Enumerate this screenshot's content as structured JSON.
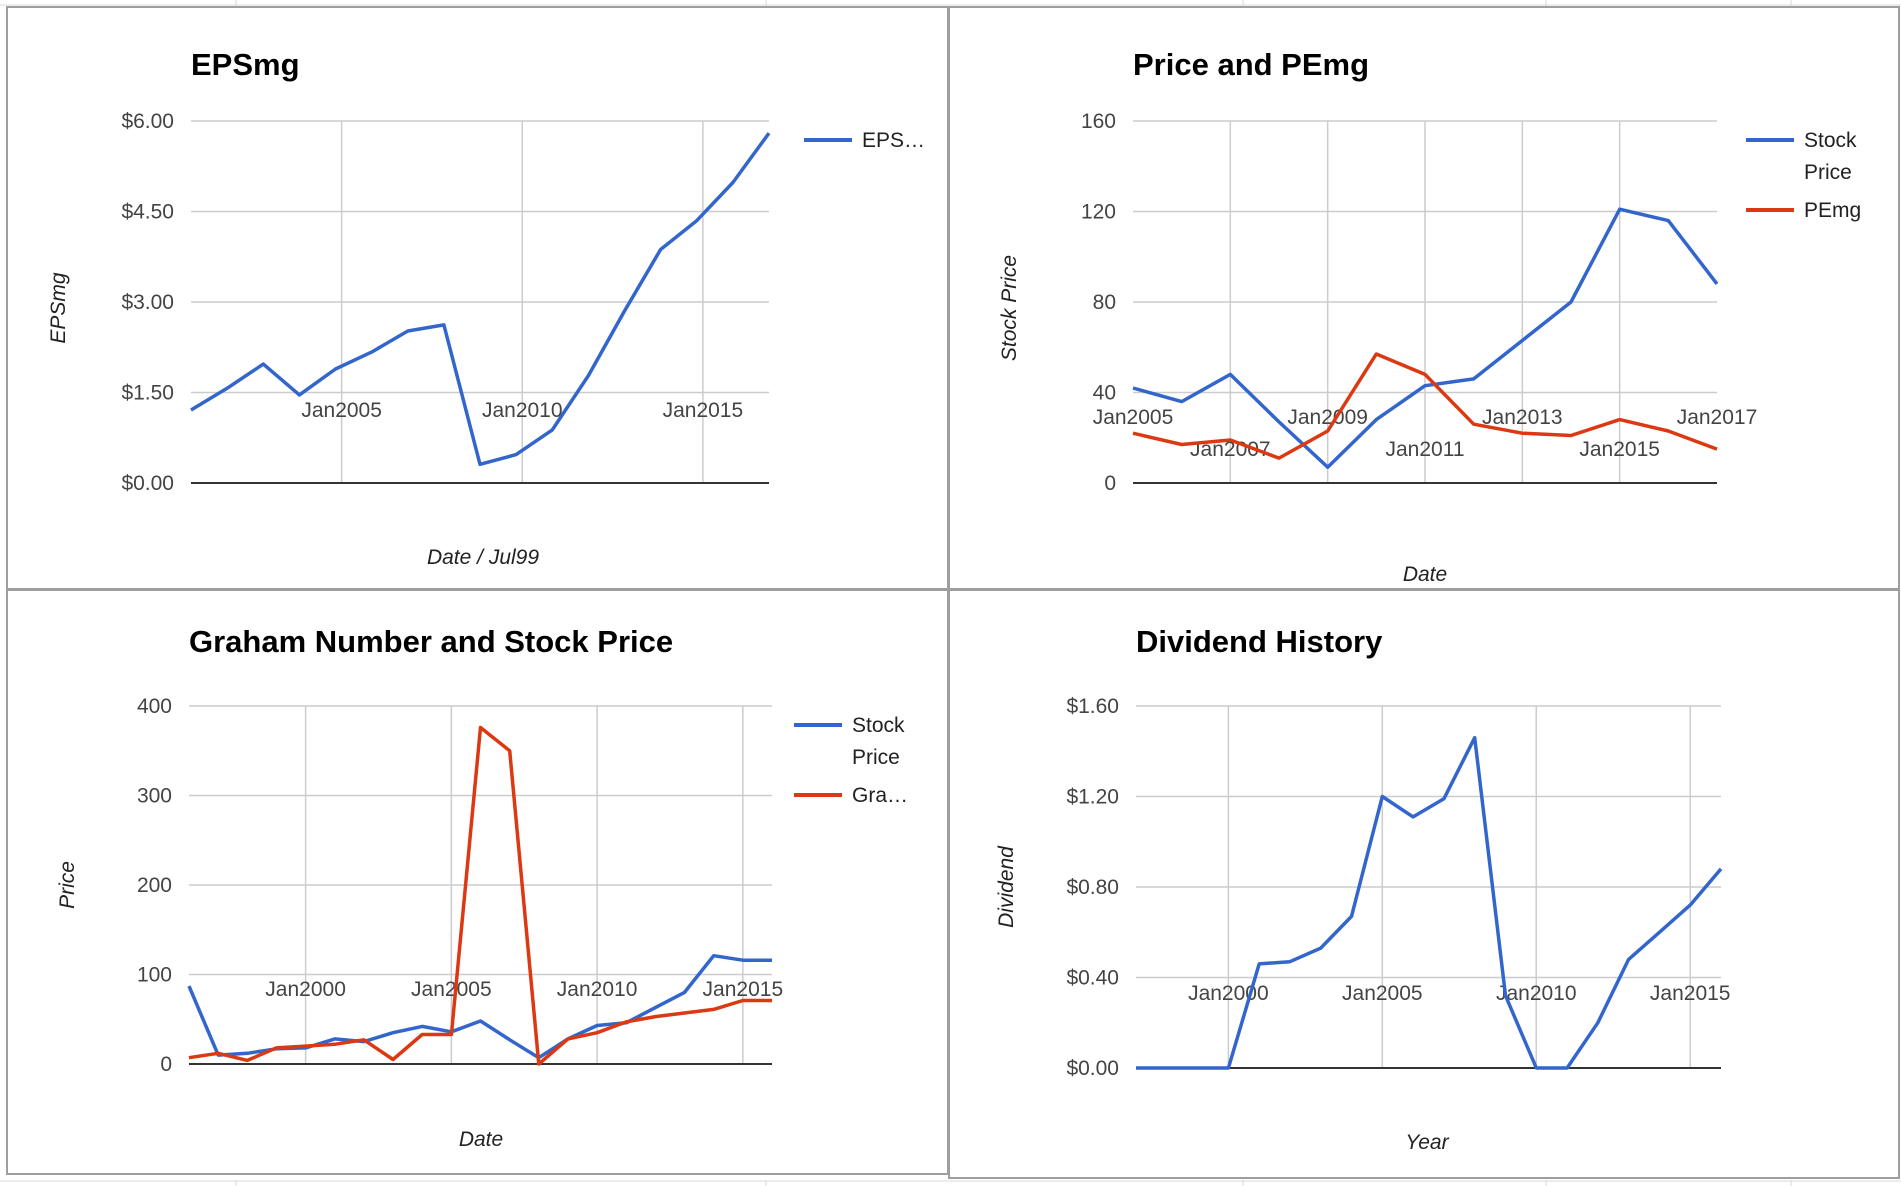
{
  "colors": {
    "blue": "#3366cc",
    "red": "#dc3912",
    "grid": "#cccccc",
    "axis": "#333333"
  },
  "chart_data": [
    {
      "type": "line",
      "title": "EPSmg",
      "xlabel": "Date / Jul99",
      "ylabel": "EPSmg",
      "xlim": [
        2000.83,
        2016.83
      ],
      "ylim": [
        0,
        6
      ],
      "yticks": [
        0,
        1.5,
        3,
        4.5,
        6
      ],
      "yticklabels": [
        "$0.00",
        "$1.50",
        "$3.00",
        "$4.50",
        "$6.00"
      ],
      "xticks": [
        2005,
        2010,
        2015
      ],
      "xticklabels": [
        "Jan2005",
        "Jan2010",
        "Jan2015"
      ],
      "legend": "right",
      "series": [
        {
          "name": "EPS…",
          "color": "#3366cc",
          "x": [
            2000.83,
            2001.83,
            2002.83,
            2003.83,
            2004.83,
            2005.83,
            2006.83,
            2007.83,
            2008.83,
            2009.83,
            2010.83,
            2011.83,
            2012.83,
            2013.83,
            2014.83,
            2015.83,
            2016.83
          ],
          "y": [
            1.21,
            1.57,
            1.97,
            1.46,
            1.89,
            2.17,
            2.52,
            2.62,
            0.31,
            0.47,
            0.88,
            1.78,
            2.85,
            3.87,
            4.35,
            4.98,
            5.8
          ]
        }
      ]
    },
    {
      "type": "line",
      "title": "Price and PEmg",
      "xlabel": "Date",
      "ylabel": "Stock Price",
      "xlim": [
        2005,
        2017
      ],
      "ylim": [
        0,
        160
      ],
      "yticks": [
        0,
        40,
        80,
        120,
        160
      ],
      "yticklabels": [
        "0",
        "40",
        "80",
        "120",
        "160"
      ],
      "xticks": [
        2005,
        2007,
        2009,
        2011,
        2013,
        2015,
        2017
      ],
      "xticklabels": [
        "Jan2005",
        "Jan2007",
        "Jan2009",
        "Jan2011",
        "Jan2013",
        "Jan2015",
        "Jan2017"
      ],
      "legend": "right",
      "series": [
        {
          "name": "Stock Price",
          "color": "#3366cc",
          "x": [
            2005,
            2006,
            2007,
            2008,
            2009,
            2010,
            2011,
            2012,
            2013,
            2014,
            2015,
            2016,
            2017
          ],
          "y": [
            42,
            36,
            48,
            27,
            7,
            28,
            43,
            46,
            63,
            80,
            121,
            116,
            88
          ]
        },
        {
          "name": "PEmg",
          "color": "#dc3912",
          "x": [
            2005,
            2006,
            2007,
            2008,
            2009,
            2010,
            2011,
            2012,
            2013,
            2014,
            2015,
            2016,
            2017
          ],
          "y": [
            22,
            17,
            19,
            11,
            23,
            57,
            48,
            26,
            22,
            21,
            28,
            23,
            15
          ]
        }
      ]
    },
    {
      "type": "line",
      "title": "Graham Number and Stock Price",
      "xlabel": "Date",
      "ylabel": "Price",
      "xlim": [
        1996,
        2016
      ],
      "ylim": [
        0,
        400
      ],
      "yticks": [
        0,
        100,
        200,
        300,
        400
      ],
      "yticklabels": [
        "0",
        "100",
        "200",
        "300",
        "400"
      ],
      "xticks": [
        2000,
        2005,
        2010,
        2015
      ],
      "xticklabels": [
        "Jan2000",
        "Jan2005",
        "Jan2010",
        "Jan2015"
      ],
      "legend": "right",
      "series": [
        {
          "name": "Stock Price",
          "color": "#3366cc",
          "x": [
            1996,
            1997,
            1998,
            1999,
            2000,
            2001,
            2002,
            2003,
            2004,
            2005,
            2006,
            2007,
            2008,
            2009,
            2010,
            2011,
            2012,
            2013,
            2014,
            2015,
            2016
          ],
          "y": [
            87,
            10,
            12,
            17,
            18,
            28,
            25,
            35,
            42,
            36,
            48,
            27,
            7,
            28,
            43,
            46,
            63,
            80,
            121,
            116,
            116
          ]
        },
        {
          "name": "Gra…",
          "color": "#dc3912",
          "x": [
            1996,
            1997,
            1998,
            1999,
            2000,
            2001,
            2002,
            2003,
            2004,
            2005,
            2006,
            2007,
            2008,
            2009,
            2010,
            2011,
            2012,
            2013,
            2014,
            2015,
            2016
          ],
          "y": [
            7,
            12,
            4,
            18,
            20,
            22,
            27,
            5,
            33,
            33,
            376,
            350,
            0,
            28,
            35,
            47,
            53,
            57,
            61,
            71,
            71
          ]
        }
      ]
    },
    {
      "type": "line",
      "title": "Dividend History",
      "xlabel": "Year",
      "ylabel": "Dividend",
      "xlim": [
        1997,
        2016
      ],
      "ylim": [
        0,
        1.6
      ],
      "yticks": [
        0,
        0.4,
        0.8,
        1.2,
        1.6
      ],
      "yticklabels": [
        "$0.00",
        "$0.40",
        "$0.80",
        "$1.20",
        "$1.60"
      ],
      "xticks": [
        2000,
        2005,
        2010,
        2015
      ],
      "xticklabels": [
        "Jan2000",
        "Jan2005",
        "Jan2010",
        "Jan2015"
      ],
      "legend": "none",
      "series": [
        {
          "name": "",
          "color": "#3366cc",
          "x": [
            1997,
            1998,
            1999,
            2000,
            2001,
            2002,
            2003,
            2004,
            2005,
            2006,
            2007,
            2008,
            2009,
            2010,
            2011,
            2012,
            2013,
            2014,
            2015,
            2016
          ],
          "y": [
            0,
            0,
            0,
            0,
            0.46,
            0.47,
            0.53,
            0.67,
            1.2,
            1.11,
            1.19,
            1.46,
            0.32,
            0,
            0,
            0.2,
            0.48,
            0.6,
            0.72,
            0.88
          ]
        }
      ]
    }
  ]
}
